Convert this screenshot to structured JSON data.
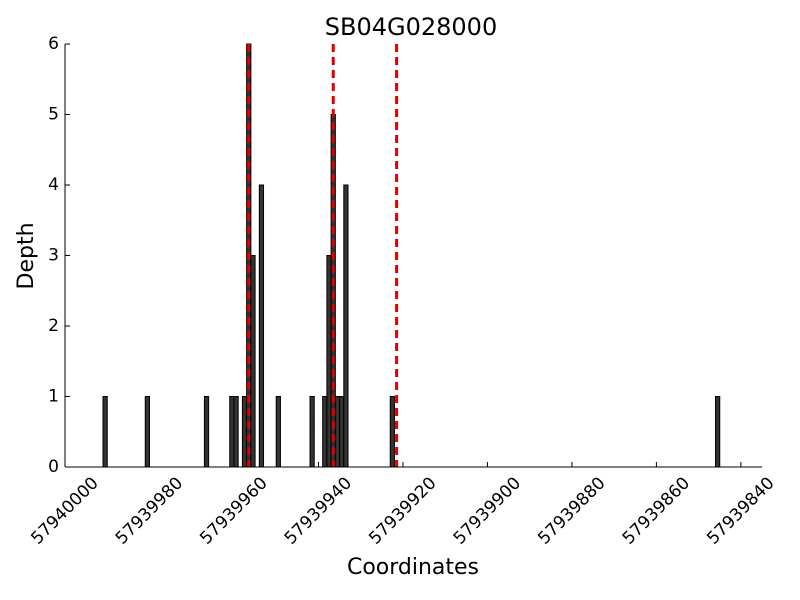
{
  "chart_data": {
    "type": "bar",
    "title": "SB04G028000",
    "x_label": "Coordinates",
    "y_label": "Depth",
    "x": [
      57939990.5,
      57939980.5,
      57939966.5,
      57939960.5,
      57939959.5,
      57939957.5,
      57939956.5,
      57939955.5,
      57939953.5,
      57939949.5,
      57939941.5,
      57939938.5,
      57939937.5,
      57939936.5,
      57939935.5,
      57939934.5,
      57939933.5,
      57939922.5,
      57939845.5
    ],
    "values": [
      1,
      1,
      1,
      1,
      1,
      1,
      6,
      3,
      4,
      1,
      1,
      1,
      3,
      5,
      1,
      1,
      4,
      1,
      1
    ],
    "color": "#333333",
    "vlines": [
      57939956.5,
      57939936.5,
      57939921.5
    ],
    "vline_color": "#e00000",
    "xlim": [
      57940000,
      57939835
    ],
    "xticks": [
      57940000,
      57939980,
      57939960,
      57939940,
      57939920,
      57939900,
      57939880,
      57939860,
      57939840
    ],
    "ylim": [
      0,
      6
    ],
    "yticks": [
      0,
      1,
      2,
      3,
      4,
      5,
      6
    ],
    "grid": false
  }
}
